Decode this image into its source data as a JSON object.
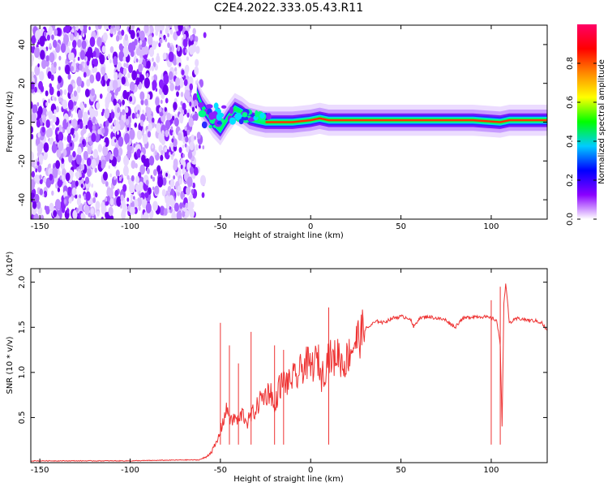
{
  "title": "C2E4.2022.333.05.43.R11",
  "chart_data": [
    {
      "type": "heatmap",
      "xlabel": "Height of straight line (km)",
      "ylabel": "Frequency (Hz)",
      "xlim": [
        -155,
        131
      ],
      "ylim": [
        -50,
        50
      ],
      "x_ticks": [
        -150,
        -100,
        -50,
        0,
        50,
        100
      ],
      "x_tick_labels": [
        "-150",
        "-100",
        "-50",
        "0",
        "50",
        "100"
      ],
      "y_ticks": [
        -40,
        -20,
        0,
        20,
        40
      ],
      "y_tick_labels": [
        "-40",
        "-20",
        "0",
        "20",
        "40"
      ],
      "colorbar": {
        "label": "Normalized spectral amplitude",
        "range": [
          0,
          1
        ],
        "ticks": [
          0,
          0.2,
          0.4,
          0.6,
          0.8
        ],
        "tick_labels": [
          "0.0",
          "0.2",
          "0.4",
          "0.6",
          "0.8"
        ],
        "colors": [
          "#ffffff",
          "#8a00ff",
          "#0000ff",
          "#00ccff",
          "#00ff00",
          "#ffff00",
          "#ff8800",
          "#ff0000",
          "#ff0066"
        ]
      },
      "noise_region_x": [
        -155,
        -63
      ],
      "ridge": [
        {
          "x": -63,
          "y": 15
        },
        {
          "x": -60,
          "y": 8
        },
        {
          "x": -57,
          "y": 4
        },
        {
          "x": -54,
          "y": 0
        },
        {
          "x": -50,
          "y": -4
        },
        {
          "x": -46,
          "y": 2
        },
        {
          "x": -42,
          "y": 7
        },
        {
          "x": -38,
          "y": 5
        },
        {
          "x": -34,
          "y": 2
        },
        {
          "x": -30,
          "y": 1
        },
        {
          "x": -25,
          "y": 0
        },
        {
          "x": -20,
          "y": 0
        },
        {
          "x": -10,
          "y": 0
        },
        {
          "x": 0,
          "y": 1
        },
        {
          "x": 5,
          "y": 2
        },
        {
          "x": 10,
          "y": 1
        },
        {
          "x": 30,
          "y": 1
        },
        {
          "x": 60,
          "y": 1
        },
        {
          "x": 90,
          "y": 1
        },
        {
          "x": 105,
          "y": 0
        },
        {
          "x": 110,
          "y": 1
        },
        {
          "x": 131,
          "y": 1
        }
      ]
    },
    {
      "type": "line",
      "xlabel": "Height of straight line (km)",
      "ylabel": "SNR (10 * v/v)",
      "y_multiplier": "(x10⁴)",
      "xlim": [
        -155,
        131
      ],
      "ylim": [
        0,
        2.15
      ],
      "x_ticks": [
        -150,
        -100,
        -50,
        0,
        50,
        100
      ],
      "x_tick_labels": [
        "-150",
        "-100",
        "-50",
        "0",
        "50",
        "100"
      ],
      "y_ticks": [
        0.5,
        1.0,
        1.5,
        2.0
      ],
      "y_tick_labels": [
        "0.5",
        "1.0",
        "1.5",
        "2.0"
      ],
      "color": "#ee3333",
      "series": [
        {
          "x": [
            -155,
            -100,
            -70,
            -62,
            -58,
            -55,
            -52,
            -50,
            -48,
            -46,
            -44,
            -42,
            -40,
            -38,
            -35,
            -32,
            -30,
            -28,
            -25,
            -22,
            -20,
            -18,
            -15,
            -12,
            -10,
            -8,
            -5,
            -2,
            0,
            2,
            4,
            6,
            8,
            10,
            12,
            15,
            18,
            20,
            22,
            25,
            28,
            30,
            32,
            35,
            38,
            40,
            45,
            50,
            55,
            57,
            60,
            65,
            70,
            75,
            80,
            83,
            85,
            90,
            95,
            100,
            103,
            105,
            106,
            107,
            108,
            110,
            115,
            120,
            125,
            128,
            131
          ],
          "y": [
            0.02,
            0.02,
            0.03,
            0.03,
            0.06,
            0.12,
            0.22,
            0.35,
            0.5,
            0.6,
            0.45,
            0.5,
            0.45,
            0.55,
            0.45,
            0.55,
            0.6,
            0.7,
            0.75,
            0.8,
            0.55,
            0.82,
            0.9,
            0.88,
            0.95,
            0.92,
            1.05,
            1.1,
            1.05,
            1.1,
            1.15,
            0.95,
            1.05,
            1.2,
            1.12,
            1.22,
            1.08,
            1.15,
            1.25,
            1.35,
            1.42,
            1.48,
            1.5,
            1.55,
            1.57,
            1.55,
            1.6,
            1.62,
            1.6,
            1.5,
            1.6,
            1.62,
            1.6,
            1.58,
            1.5,
            1.58,
            1.6,
            1.62,
            1.62,
            1.6,
            1.58,
            1.3,
            0.42,
            1.75,
            2.0,
            1.55,
            1.6,
            1.58,
            1.57,
            1.55,
            1.46
          ]
        }
      ],
      "spikes": [
        {
          "x": -50,
          "y": 1.55
        },
        {
          "x": -45,
          "y": 1.3
        },
        {
          "x": -40,
          "y": 1.1
        },
        {
          "x": -33,
          "y": 1.45
        },
        {
          "x": -20,
          "y": 1.3
        },
        {
          "x": -15,
          "y": 1.25
        },
        {
          "x": 10,
          "y": 1.72
        },
        {
          "x": 100,
          "y": 1.8
        },
        {
          "x": 105,
          "y": 1.95
        }
      ]
    }
  ]
}
